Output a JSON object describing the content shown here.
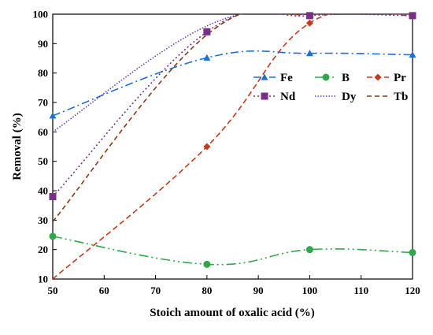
{
  "chart_data": {
    "type": "line",
    "xlabel": "Stoich amount of oxalic acid (%)",
    "ylabel": "Removal (%)",
    "xlim": [
      50,
      120
    ],
    "ylim": [
      10,
      100
    ],
    "xticks": [
      50,
      60,
      70,
      80,
      90,
      100,
      110,
      120
    ],
    "yticks": [
      10,
      20,
      30,
      40,
      50,
      60,
      70,
      80,
      90,
      100
    ],
    "grid": false,
    "legend_position": "upper-right",
    "series": [
      {
        "name": "Fe",
        "color": "#1f6fd1",
        "marker": "triangle",
        "dash": "dashdot",
        "x": [
          50,
          80,
          100,
          120
        ],
        "y": [
          65.5,
          85.2,
          86.7,
          86.2
        ]
      },
      {
        "name": "B",
        "color": "#2ea84a",
        "marker": "circle",
        "dash": "dashdotdot",
        "x": [
          50,
          80,
          100,
          120
        ],
        "y": [
          24.5,
          15,
          20,
          19
        ]
      },
      {
        "name": "Pr",
        "color": "#c43a1a",
        "marker": "diamond",
        "dash": "longdash",
        "x": [
          50,
          80,
          100,
          120
        ],
        "y": [
          5,
          55,
          97,
          99.5
        ]
      },
      {
        "name": "Nd",
        "color": "#7a2f86",
        "marker": "square",
        "dash": "dotted",
        "x": [
          50,
          80,
          100,
          120
        ],
        "y": [
          38,
          94,
          99.5,
          99.5
        ]
      },
      {
        "name": "Dy",
        "color": "#5a44d8",
        "marker": "none",
        "dash": "finedot",
        "x": [
          50,
          80,
          100,
          120
        ],
        "y": [
          60,
          96,
          100,
          100
        ]
      },
      {
        "name": "Tb",
        "color": "#8b3a12",
        "marker": "none",
        "dash": "dashed",
        "x": [
          50,
          80,
          100,
          120
        ],
        "y": [
          29.5,
          93,
          100,
          100
        ]
      }
    ]
  }
}
